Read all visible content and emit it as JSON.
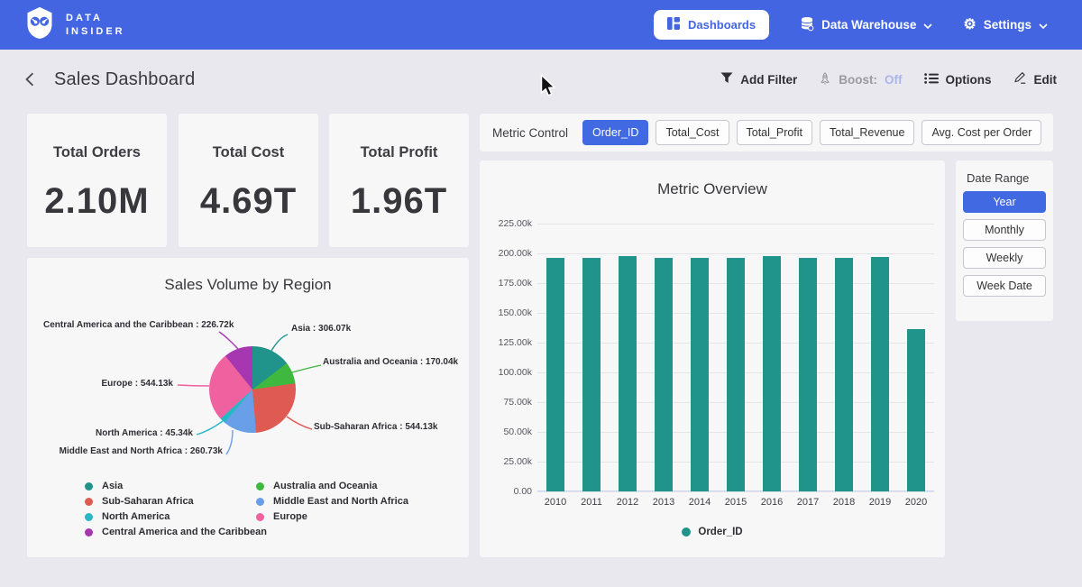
{
  "navbar": {
    "brand_line1": "DATA",
    "brand_line2": "INSIDER",
    "dashboards_label": "Dashboards",
    "data_warehouse_label": "Data Warehouse",
    "settings_label": "Settings"
  },
  "header": {
    "title": "Sales Dashboard",
    "add_filter": "Add Filter",
    "boost_label": "Boost:",
    "boost_value": "Off",
    "options": "Options",
    "edit": "Edit"
  },
  "kpis": [
    {
      "label": "Total Orders",
      "value": "2.10M"
    },
    {
      "label": "Total Cost",
      "value": "4.69T"
    },
    {
      "label": "Total Profit",
      "value": "1.96T"
    }
  ],
  "metric_control": {
    "label": "Metric Control",
    "options": [
      {
        "label": "Order_ID",
        "active": true
      },
      {
        "label": "Total_Cost",
        "active": false
      },
      {
        "label": "Total_Profit",
        "active": false
      },
      {
        "label": "Total_Revenue",
        "active": false
      },
      {
        "label": "Avg. Cost per Order",
        "active": false
      }
    ]
  },
  "date_range": {
    "label": "Date Range",
    "options": [
      {
        "label": "Year",
        "active": true
      },
      {
        "label": "Monthly",
        "active": false
      },
      {
        "label": "Weekly",
        "active": false
      },
      {
        "label": "Week Date",
        "active": false
      }
    ]
  },
  "colors": {
    "navbar_blue": "#4365e2",
    "accent_blue": "#4169e1",
    "page_bg": "#e9e8ee",
    "card_bg": "#f7f7f8",
    "bar_teal": "#20948b",
    "boost_off": "#a9b6ee"
  },
  "chart_data": [
    {
      "type": "bar",
      "title": "Metric Overview",
      "categories": [
        "2010",
        "2011",
        "2012",
        "2013",
        "2014",
        "2015",
        "2016",
        "2017",
        "2018",
        "2019",
        "2020"
      ],
      "series": [
        {
          "name": "Order_ID",
          "values": [
            196.5,
            196.3,
            197.8,
            196.6,
            196.4,
            196.4,
            197.9,
            196.5,
            196.3,
            196.7,
            136.5
          ]
        }
      ],
      "unit": "k",
      "xlabel": "",
      "ylabel": "",
      "ylim": [
        0,
        225
      ],
      "yticks": [
        "225.00k",
        "200.00k",
        "175.00k",
        "150.00k",
        "125.00k",
        "100.00k",
        "75.00k",
        "50.00k",
        "25.00k",
        "0.00"
      ],
      "grid": true,
      "legend_position": "bottom",
      "legend": [
        {
          "label": "Order_ID",
          "color": "#20948b"
        }
      ]
    },
    {
      "type": "pie",
      "title": "Sales Volume by Region",
      "unit": "k",
      "slices": [
        {
          "label": "Asia",
          "value": 306.07,
          "display": "Asia : 306.07k",
          "color": "#20948b"
        },
        {
          "label": "Australia and Oceania",
          "value": 170.04,
          "display": "Australia and Oceania : 170.04k",
          "color": "#3eb83e"
        },
        {
          "label": "Sub-Saharan Africa",
          "value": 544.13,
          "display": "Sub-Saharan Africa : 544.13k",
          "color": "#df5a52"
        },
        {
          "label": "Middle East and North Africa",
          "value": 260.73,
          "display": "Middle East and North Africa : 260.73k",
          "color": "#699ee8"
        },
        {
          "label": "North America",
          "value": 45.34,
          "display": "North America : 45.34k",
          "color": "#29b7c4"
        },
        {
          "label": "Europe",
          "value": 544.13,
          "display": "Europe : 544.13k",
          "color": "#f0619f"
        },
        {
          "label": "Central America and the Caribbean",
          "value": 226.72,
          "display": "Central America and the Caribbean : 226.72k",
          "color": "#a637b0"
        }
      ],
      "legend_columns": [
        [
          0,
          2,
          4,
          6
        ],
        [
          1,
          3,
          5
        ]
      ],
      "legend_position": "bottom"
    }
  ]
}
